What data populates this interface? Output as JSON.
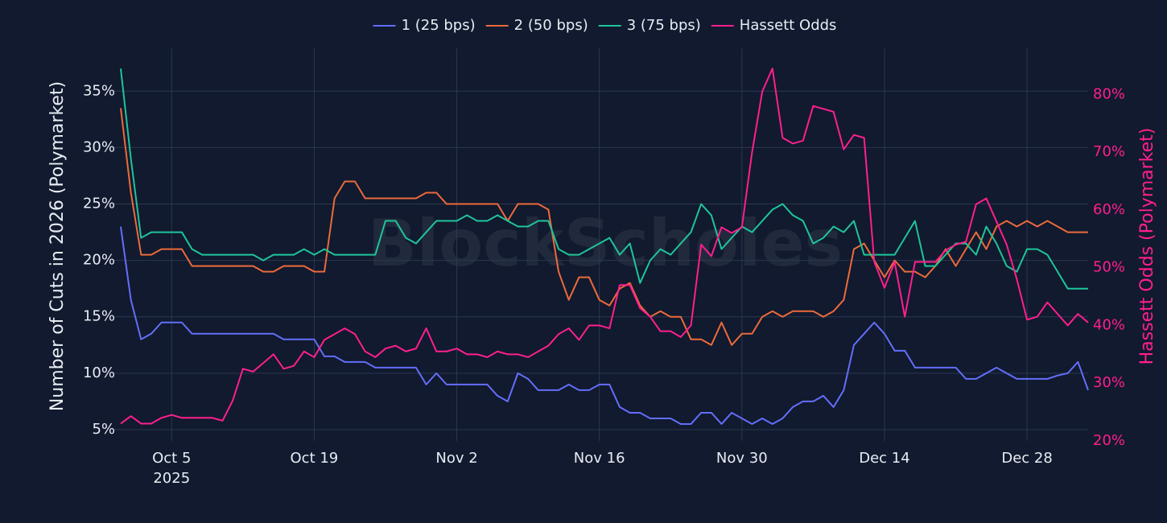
{
  "chart_data": {
    "type": "line",
    "watermark": "BlockScholes",
    "y_label": "Number of Cuts in 2026 (Polymarket)",
    "y2_label": "Hassett Odds (Polymarket)",
    "background": "#111a2e",
    "grid": true,
    "legend": "top",
    "x": [
      "2025-09-30",
      "2025-10-01",
      "2025-10-02",
      "2025-10-03",
      "2025-10-04",
      "2025-10-05",
      "2025-10-06",
      "2025-10-07",
      "2025-10-08",
      "2025-10-09",
      "2025-10-10",
      "2025-10-11",
      "2025-10-12",
      "2025-10-13",
      "2025-10-14",
      "2025-10-15",
      "2025-10-16",
      "2025-10-17",
      "2025-10-18",
      "2025-10-19",
      "2025-10-20",
      "2025-10-21",
      "2025-10-22",
      "2025-10-23",
      "2025-10-24",
      "2025-10-25",
      "2025-10-26",
      "2025-10-27",
      "2025-10-28",
      "2025-10-29",
      "2025-10-30",
      "2025-10-31",
      "2025-11-01",
      "2025-11-02",
      "2025-11-03",
      "2025-11-04",
      "2025-11-05",
      "2025-11-06",
      "2025-11-07",
      "2025-11-08",
      "2025-11-09",
      "2025-11-10",
      "2025-11-11",
      "2025-11-12",
      "2025-11-13",
      "2025-11-14",
      "2025-11-15",
      "2025-11-16",
      "2025-11-17",
      "2025-11-18",
      "2025-11-19",
      "2025-11-20",
      "2025-11-21",
      "2025-11-22",
      "2025-11-23",
      "2025-11-24",
      "2025-11-25",
      "2025-11-26",
      "2025-11-27",
      "2025-11-28",
      "2025-11-29",
      "2025-11-30",
      "2025-12-01",
      "2025-12-02",
      "2025-12-03",
      "2025-12-04",
      "2025-12-05",
      "2025-12-06",
      "2025-12-07",
      "2025-12-08",
      "2025-12-09",
      "2025-12-10",
      "2025-12-11",
      "2025-12-12",
      "2025-12-13",
      "2025-12-14",
      "2025-12-15",
      "2025-12-16",
      "2025-12-17",
      "2025-12-18",
      "2025-12-19",
      "2025-12-20",
      "2025-12-21",
      "2025-12-22",
      "2025-12-23",
      "2025-12-24",
      "2025-12-25",
      "2025-12-26",
      "2025-12-27",
      "2025-12-28",
      "2025-12-29",
      "2025-12-30",
      "2025-12-31",
      "2026-01-01",
      "2026-01-02",
      "2026-01-03"
    ],
    "xlim": [
      "2025-09-30",
      "2026-01-03"
    ],
    "xticks": [
      {
        "value": "2025-10-05",
        "label": [
          "Oct 5",
          "2025"
        ]
      },
      {
        "value": "2025-10-19",
        "label": [
          "Oct 19"
        ]
      },
      {
        "value": "2025-11-02",
        "label": [
          "Nov 2"
        ]
      },
      {
        "value": "2025-11-16",
        "label": [
          "Nov 16"
        ]
      },
      {
        "value": "2025-11-30",
        "label": [
          "Nov 30"
        ]
      },
      {
        "value": "2025-12-14",
        "label": [
          "Dec 14"
        ]
      },
      {
        "value": "2025-12-28",
        "label": [
          "Dec 28"
        ]
      }
    ],
    "ylim": [
      4,
      38.8
    ],
    "yticks": [
      {
        "value": 5,
        "label": "5%"
      },
      {
        "value": 10,
        "label": "10%"
      },
      {
        "value": 15,
        "label": "15%"
      },
      {
        "value": 20,
        "label": "20%"
      },
      {
        "value": 25,
        "label": "25%"
      },
      {
        "value": 30,
        "label": "30%"
      },
      {
        "value": 35,
        "label": "35%"
      }
    ],
    "y2lim": [
      20,
      88
    ],
    "y2ticks": [
      {
        "value": 20,
        "label": "20%"
      },
      {
        "value": 30,
        "label": "30%"
      },
      {
        "value": 40,
        "label": "40%"
      },
      {
        "value": 50,
        "label": "50%"
      },
      {
        "value": 60,
        "label": "60%"
      },
      {
        "value": 70,
        "label": "70%"
      },
      {
        "value": 80,
        "label": "80%"
      }
    ],
    "y2_color": "#ff1f8e",
    "series": [
      {
        "name": "1 (25 bps)",
        "color": "#636efa",
        "values": [
          23,
          16.5,
          13,
          13.5,
          14.5,
          14.5,
          14.5,
          13.5,
          13.5,
          13.5,
          13.5,
          13.5,
          13.5,
          13.5,
          13.5,
          13.5,
          13,
          13,
          13,
          13,
          11.5,
          11.5,
          11,
          11,
          11,
          10.5,
          10.5,
          10.5,
          10.5,
          10.5,
          9,
          10,
          9,
          9,
          9,
          9,
          9,
          8,
          7.5,
          10,
          9.5,
          8.5,
          8.5,
          8.5,
          9,
          8.5,
          8.5,
          9,
          9,
          7,
          6.5,
          6.5,
          6,
          6,
          6,
          5.5,
          5.5,
          6.5,
          6.5,
          5.5,
          6.5,
          6,
          5.5,
          6,
          5.5,
          6,
          7,
          7.5,
          7.5,
          8,
          7,
          8.5,
          12.5,
          13.5,
          14.5,
          13.5,
          12,
          12,
          10.5,
          10.5,
          10.5,
          10.5,
          10.5,
          9.5,
          9.5,
          10,
          10.5,
          10,
          9.5,
          9.5,
          9.5,
          9.5,
          9.8,
          10,
          11,
          8.5
        ]
      },
      {
        "name": "2 (50 bps)",
        "color": "#ec6a3c",
        "values": [
          33.5,
          26,
          20.5,
          20.5,
          21,
          21,
          21,
          19.5,
          19.5,
          19.5,
          19.5,
          19.5,
          19.5,
          19.5,
          19,
          19,
          19.5,
          19.5,
          19.5,
          19,
          19,
          25.5,
          27,
          27,
          25.5,
          25.5,
          25.5,
          25.5,
          25.5,
          25.5,
          26,
          26,
          25,
          25,
          25,
          25,
          25,
          25,
          23.5,
          25,
          25,
          25,
          24.5,
          19,
          16.5,
          18.5,
          18.5,
          16.5,
          16,
          17.5,
          18,
          16,
          15,
          15.5,
          15,
          15,
          13,
          13,
          12.5,
          14.5,
          12.5,
          13.5,
          13.5,
          15,
          15.5,
          15,
          15.5,
          15.5,
          15.5,
          15,
          15.5,
          16.5,
          21,
          21.5,
          20,
          18.5,
          20,
          19,
          19,
          18.5,
          19.5,
          21,
          19.5,
          21,
          22.5,
          21,
          23,
          23.5,
          23,
          23.5,
          23,
          23.5,
          23,
          22.5,
          22.5,
          22.5
        ]
      },
      {
        "name": "3 (75 bps)",
        "color": "#1fc49a",
        "values": [
          37,
          29,
          22,
          22.5,
          22.5,
          22.5,
          22.5,
          21,
          20.5,
          20.5,
          20.5,
          20.5,
          20.5,
          20.5,
          20,
          20.5,
          20.5,
          20.5,
          21,
          20.5,
          21,
          20.5,
          20.5,
          20.5,
          20.5,
          20.5,
          23.5,
          23.5,
          22,
          21.5,
          22.5,
          23.5,
          23.5,
          23.5,
          24,
          23.5,
          23.5,
          24,
          23.5,
          23,
          23,
          23.5,
          23.5,
          21,
          20.5,
          20.5,
          21,
          21.5,
          22,
          20.5,
          21.5,
          18,
          20,
          21,
          20.5,
          21.5,
          22.5,
          25,
          24,
          21,
          22,
          23,
          22.5,
          23.5,
          24.5,
          25,
          24,
          23.5,
          21.5,
          22,
          23,
          22.5,
          23.5,
          20.5,
          20.5,
          20.5,
          20.5,
          22,
          23.5,
          19.5,
          19.5,
          20.5,
          21.5,
          21.5,
          20.5,
          23,
          21.5,
          19.5,
          19,
          21,
          21,
          20.5,
          19,
          17.5,
          17.5,
          17.5
        ]
      },
      {
        "name": "Hassett Odds",
        "color": "#ff1f8e",
        "axis": "y2",
        "values": [
          23,
          24.3,
          23,
          23,
          24,
          24.5,
          24,
          24,
          24,
          24,
          23.5,
          27,
          32.5,
          32,
          33.5,
          35,
          32.5,
          33,
          35.5,
          34.5,
          37.5,
          38.5,
          39.5,
          38.5,
          35.5,
          34.5,
          36,
          36.5,
          35.5,
          36,
          39.5,
          35.5,
          35.5,
          36,
          35,
          35,
          34.5,
          35.5,
          35,
          35,
          34.5,
          35.5,
          36.5,
          38.5,
          39.5,
          37.5,
          40,
          40,
          39.5,
          47,
          47,
          43,
          41.5,
          39,
          39,
          38,
          40,
          54,
          52,
          57,
          56,
          57,
          70,
          80.5,
          84.5,
          72.5,
          71.5,
          72,
          78,
          77.5,
          77,
          70.5,
          73,
          72.5,
          51,
          46.5,
          51,
          41.5,
          51,
          51,
          51,
          53,
          54,
          54.5,
          61,
          62,
          58,
          54,
          48,
          41,
          41.5,
          44,
          42,
          40,
          42,
          40.5
        ]
      }
    ]
  }
}
